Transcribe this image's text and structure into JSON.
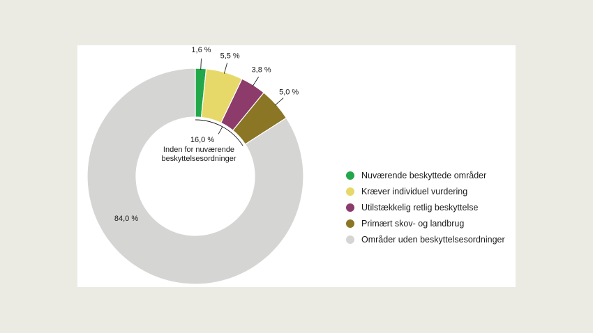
{
  "chart_data": {
    "type": "pie",
    "variant": "donut",
    "slices": [
      {
        "label": "Nuværende beskyttede områder",
        "value": 1.6,
        "value_label": "1,6 %",
        "color": "#22a84a"
      },
      {
        "label": "Kræver individuel vurdering",
        "value": 5.5,
        "value_label": "5,5 %",
        "color": "#e6d96a"
      },
      {
        "label": "Utilstækkelig retlig beskyttelse",
        "value": 3.8,
        "value_label": "3,8 %",
        "color": "#8d3b6b"
      },
      {
        "label": "Primært skov- og landbrug",
        "value": 5.0,
        "value_label": "5,0 %",
        "color": "#8a7624"
      },
      {
        "label": "Områder uden beskyttelsesordninger",
        "value": 84.0,
        "value_label": "84,0 %",
        "color": "#d5d6d4"
      }
    ],
    "group_annotation": {
      "value_label": "16,0 %",
      "text_lines": [
        "Inden for nuværende",
        "beskyttelsesordninger"
      ]
    },
    "legend_position": "right"
  }
}
